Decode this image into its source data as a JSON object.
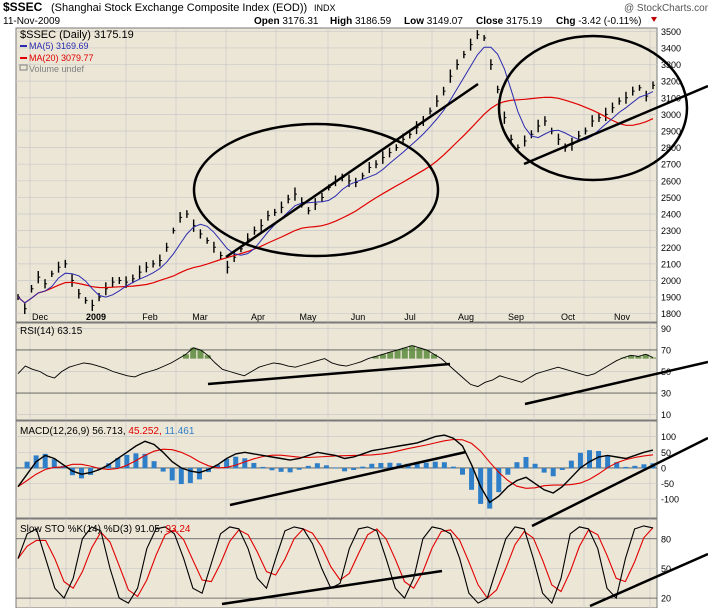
{
  "header": {
    "symbol": "$SSEC",
    "title": "(Shanghai Stock Exchange Composite Index (EOD))",
    "exchange": "INDX",
    "date": "11-Nov-2009",
    "watermark": "@ StockCharts.com",
    "open_label": "Open",
    "open": "3176.31",
    "high_label": "High",
    "high": "3186.59",
    "low_label": "Low",
    "low": "3149.07",
    "close_label": "Close",
    "close": "3175.19",
    "chg_label": "Chg",
    "chg": "-3.42 (-0.11%)"
  },
  "colors": {
    "panel_bg": "#ece6d6",
    "grid": "#c9c9c9",
    "price": "#000000",
    "ma5": "#2b2bb0",
    "ma20": "#e00000",
    "hist": "#2f7fc8",
    "rsi_fill": "#5b8a3c",
    "sto_d": "#e00000",
    "neg": "#c00000",
    "macd_slow": "#e00000",
    "macd_hist_label": "#2f7fc8"
  },
  "chart_data": [
    {
      "type": "line",
      "panel": "price",
      "legend": [
        {
          "label": "$SSEC (Daily) 3175.19",
          "color": "#000000"
        },
        {
          "label": "MA(5) 3169.69",
          "color": "#2b2bb0"
        },
        {
          "label": "MA(20) 3079.77",
          "color": "#e00000"
        },
        {
          "label": "Volume undef",
          "color": "#808080"
        }
      ],
      "x_labels": [
        "Dec",
        "2009",
        "Feb",
        "Mar",
        "Apr",
        "May",
        "Jun",
        "Jul",
        "Aug",
        "Sep",
        "Oct",
        "Nov"
      ],
      "y_ticks": [
        1800,
        1900,
        2000,
        2100,
        2200,
        2300,
        2400,
        2500,
        2600,
        2700,
        2800,
        2900,
        3000,
        3100,
        3200,
        3300,
        3400,
        3500
      ],
      "ylim": [
        1750,
        3520
      ],
      "series": [
        {
          "values": [
            1900,
            1830,
            1950,
            2020,
            1980,
            2040,
            2080,
            2100,
            2000,
            1920,
            1880,
            1850,
            1900,
            1950,
            1990,
            2000,
            1990,
            2010,
            2050,
            2080,
            2100,
            2120,
            2200,
            2300,
            2380,
            2400,
            2330,
            2280,
            2240,
            2200,
            2150,
            2080,
            2140,
            2190,
            2250,
            2300,
            2330,
            2390,
            2410,
            2440,
            2490,
            2520,
            2470,
            2420,
            2460,
            2500,
            2560,
            2600,
            2620,
            2600,
            2590,
            2630,
            2680,
            2700,
            2740,
            2770,
            2800,
            2850,
            2880,
            2920,
            2960,
            3020,
            3080,
            3140,
            3230,
            3300,
            3360,
            3420,
            3480,
            3460,
            3300,
            3150,
            2980,
            2850,
            2800,
            2840,
            2880,
            2930,
            2960,
            2900,
            2850,
            2800,
            2820,
            2870,
            2900,
            2960,
            2980,
            3000,
            3040,
            3080,
            3100,
            3140,
            3160,
            3110,
            3175
          ]
        }
      ]
    },
    {
      "type": "line",
      "panel": "rsi",
      "legend": [
        {
          "label": "RSI(14) 63.15",
          "color": "#000000"
        }
      ],
      "y_ticks": [
        10,
        30,
        50,
        70,
        90
      ],
      "ylim": [
        5,
        95
      ],
      "series": [
        {
          "values": [
            48,
            55,
            52,
            50,
            46,
            44,
            50,
            54,
            56,
            58,
            57,
            55,
            53,
            50,
            48,
            46,
            45,
            48,
            50,
            52,
            55,
            58,
            62,
            66,
            72,
            70,
            65,
            58,
            52,
            50,
            48,
            46,
            50,
            54,
            56,
            58,
            57,
            55,
            54,
            56,
            58,
            60,
            62,
            58,
            56,
            55,
            57,
            59,
            62,
            64,
            66,
            68,
            70,
            72,
            74,
            72,
            70,
            66,
            62,
            56,
            50,
            44,
            38,
            36,
            40,
            42,
            46,
            44,
            42,
            40,
            44,
            48,
            50,
            52,
            54,
            52,
            50,
            48,
            46,
            48,
            52,
            56,
            60,
            63,
            65,
            64,
            66,
            63
          ]
        }
      ]
    },
    {
      "type": "line",
      "panel": "macd",
      "legend": [
        {
          "label": "MACD(12,26,9) 56.713,",
          "color": "#000000"
        },
        {
          "label": "45.252,",
          "color": "#e00000"
        },
        {
          "label": "11.461",
          "color": "#2f7fc8"
        }
      ],
      "y_ticks": [
        -100,
        -50,
        0,
        50,
        100
      ],
      "ylim": [
        -160,
        150
      ],
      "series": [
        {
          "values": [
            -60,
            -20,
            20,
            40,
            30,
            10,
            -10,
            -20,
            -15,
            -5,
            10,
            30,
            50,
            70,
            85,
            75,
            50,
            20,
            0,
            -10,
            -15,
            -5,
            10,
            30,
            45,
            50,
            45,
            40,
            35,
            30,
            25,
            30,
            40,
            50,
            45,
            40,
            30,
            35,
            45,
            55,
            60,
            65,
            70,
            75,
            80,
            90,
            100,
            105,
            95,
            70,
            10,
            -60,
            -110,
            -90,
            -60,
            -40,
            -30,
            -50,
            -70,
            -80,
            -60,
            -30,
            0,
            20,
            35,
            40,
            35,
            30,
            40,
            50,
            57
          ]
        }
      ]
    },
    {
      "type": "line",
      "panel": "sto",
      "legend": [
        {
          "label": "Slow STO %K(14) %D(3) 91.05,",
          "color": "#000000"
        },
        {
          "label": "93.24",
          "color": "#e00000"
        }
      ],
      "y_ticks": [
        20,
        50,
        80
      ],
      "ylim": [
        10,
        100
      ],
      "series": [
        {
          "values": [
            60,
            85,
            90,
            60,
            30,
            20,
            40,
            80,
            92,
            88,
            50,
            20,
            15,
            30,
            70,
            90,
            92,
            85,
            60,
            30,
            25,
            55,
            85,
            92,
            90,
            70,
            40,
            30,
            60,
            88,
            92,
            90,
            75,
            50,
            30,
            35,
            70,
            90,
            92,
            88,
            60,
            30,
            20,
            40,
            80,
            92,
            90,
            85,
            60,
            25,
            15,
            20,
            50,
            80,
            92,
            90,
            60,
            25,
            15,
            40,
            85,
            92,
            90,
            70,
            30,
            20,
            60,
            90,
            93,
            91
          ]
        }
      ]
    }
  ]
}
